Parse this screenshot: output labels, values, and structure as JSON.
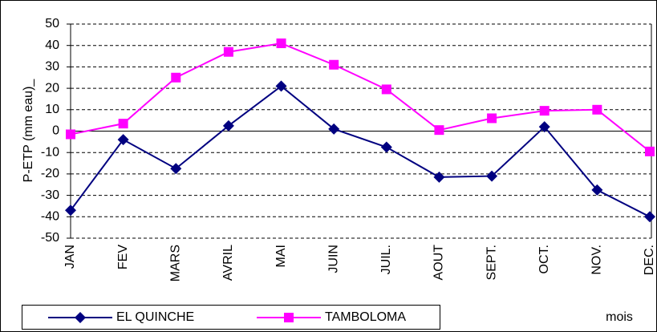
{
  "chart_data": {
    "type": "line",
    "categories": [
      "JAN",
      "FEV",
      "MARS",
      "AVRIL",
      "MAI",
      "JUIN",
      "JUIL.",
      "AOUT",
      "SEPT.",
      "OCT.",
      "NOV.",
      "DEC."
    ],
    "series": [
      {
        "name": "EL QUINCHE",
        "color": "#000080",
        "marker": "diamond",
        "values": [
          -37,
          -4,
          -17.5,
          2.5,
          21,
          1,
          -7.5,
          -21.5,
          -21,
          2,
          -27.5,
          -40
        ]
      },
      {
        "name": "TAMBOLOMA",
        "color": "#ff00ff",
        "marker": "square",
        "values": [
          -1.5,
          3.5,
          25,
          37,
          41,
          31,
          19.5,
          0.5,
          6,
          9.5,
          10,
          -9.5
        ]
      }
    ],
    "y_label": "P-ETP (mm eau)_",
    "x_label": "mois",
    "ylim": [
      -50,
      50
    ],
    "yticks": [
      -50,
      -40,
      -30,
      -20,
      -10,
      0,
      10,
      20,
      30,
      40,
      50
    ],
    "grid": true
  }
}
